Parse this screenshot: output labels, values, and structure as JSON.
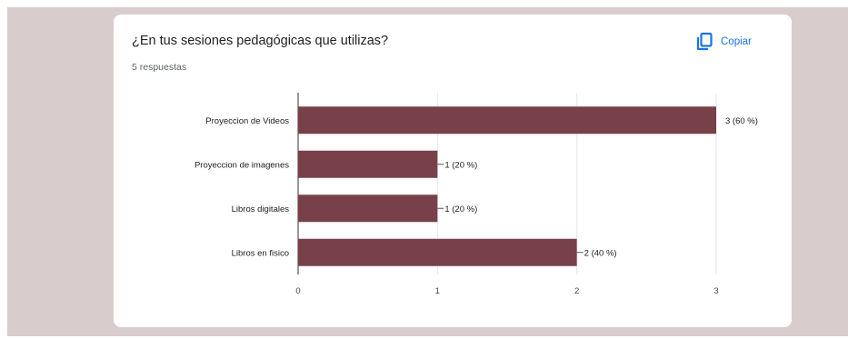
{
  "card": {
    "title": "¿En tus sesiones pedagógicas que utilizas?",
    "responses": "5 respuestas",
    "copy_label": "Copiar",
    "copy_icon": "copy-icon"
  },
  "colors": {
    "bar": "#784049",
    "accent": "#1a73e8",
    "backdrop": "#d8cccc"
  },
  "chart_data": {
    "type": "bar",
    "orientation": "horizontal",
    "categories": [
      "Proyeccion de Videos",
      "Proyeccion de imagenes",
      "Libros digitales",
      "Libros en fisico"
    ],
    "values": [
      3,
      1,
      1,
      2
    ],
    "data_labels": [
      "3 (60 %)",
      "1 (20 %)",
      "1 (20 %)",
      "2 (40 %)"
    ],
    "xlim": [
      0,
      3
    ],
    "xticks": [
      0,
      1,
      2,
      3
    ],
    "grid": true,
    "legend": "none"
  }
}
